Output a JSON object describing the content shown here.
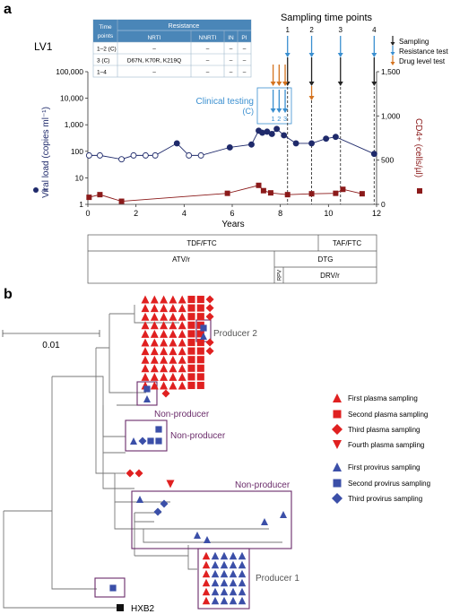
{
  "panel_a": {
    "label": "a",
    "patient": "LV1",
    "table": {
      "headers": [
        "Time points",
        "Resistance"
      ],
      "subheaders": [
        "NRTI",
        "NNRTI",
        "IN",
        "PI"
      ],
      "rows": [
        {
          "tp": "1–2 (C)",
          "nrti": "–",
          "nnrti": "–",
          "in": "–",
          "pi": "–"
        },
        {
          "tp": "3 (C)",
          "nrti": "D67N, K70R, K219Q",
          "nnrti": "–",
          "in": "–",
          "pi": "–"
        },
        {
          "tp": "1–4",
          "nrti": "–",
          "nnrti": "–",
          "in": "–",
          "pi": "–"
        }
      ]
    },
    "sampling_title": "Sampling time points",
    "sampling_numbers": [
      "1",
      "2",
      "3",
      "4"
    ],
    "arrow_legend": [
      "Sampling",
      "Resistance test",
      "Drug level test"
    ],
    "clinical_testing": {
      "title": "Clinical testing",
      "sub": "(C)",
      "numbers": [
        "1",
        "2",
        "3"
      ]
    },
    "treatments": {
      "row1": [
        "TDF/FTC",
        "TAF/FTC"
      ],
      "row2": [
        "ATV/r",
        "DTG"
      ],
      "row3": [
        "RPV",
        "DRV/r"
      ]
    }
  },
  "chart_data": {
    "type": "line",
    "xlabel": "Years",
    "ylabel_left": "Viral load (copies ml⁻¹)",
    "ylabel_right": "CD4+ (cells/µl)",
    "xlim": [
      0,
      12
    ],
    "x_ticks": [
      "0",
      "2",
      "4",
      "6",
      "8",
      "10",
      "12"
    ],
    "ylim_left": [
      1,
      100000
    ],
    "yscale_left": "log",
    "y_ticks_left": [
      "1",
      "10",
      "100",
      "1,000",
      "10,000",
      "100,000"
    ],
    "ylim_right": [
      0,
      1500
    ],
    "y_ticks_right": [
      "0",
      "500",
      "1,000",
      "1,500"
    ],
    "sampling_years": [
      8.3,
      9.3,
      10.5,
      11.9
    ],
    "clinical_years": [
      7.7,
      7.95,
      8.2
    ],
    "colors": {
      "viral": "#1f2a6b",
      "cd4": "#8b1a1a",
      "sampling": "#222222",
      "resistance": "#3a8fd0",
      "drug": "#d4731f"
    },
    "series": [
      {
        "name": "Viral load (copies ml⁻¹)",
        "points": [
          {
            "x": 0.05,
            "y": 70,
            "filled": false
          },
          {
            "x": 0.5,
            "y": 70,
            "filled": false
          },
          {
            "x": 1.4,
            "y": 50,
            "filled": false
          },
          {
            "x": 1.9,
            "y": 70,
            "filled": false
          },
          {
            "x": 2.4,
            "y": 70,
            "filled": false
          },
          {
            "x": 2.8,
            "y": 70,
            "filled": false
          },
          {
            "x": 3.7,
            "y": 200,
            "filled": true
          },
          {
            "x": 4.2,
            "y": 70,
            "filled": false
          },
          {
            "x": 4.7,
            "y": 70,
            "filled": false
          },
          {
            "x": 5.9,
            "y": 140,
            "filled": true
          },
          {
            "x": 6.8,
            "y": 180,
            "filled": true
          },
          {
            "x": 7.1,
            "y": 600,
            "filled": true
          },
          {
            "x": 7.25,
            "y": 500,
            "filled": true
          },
          {
            "x": 7.45,
            "y": 550,
            "filled": true
          },
          {
            "x": 7.65,
            "y": 450,
            "filled": true
          },
          {
            "x": 7.85,
            "y": 700,
            "filled": true
          },
          {
            "x": 8.15,
            "y": 400,
            "filled": true
          },
          {
            "x": 8.65,
            "y": 200,
            "filled": true
          },
          {
            "x": 9.3,
            "y": 200,
            "filled": true
          },
          {
            "x": 9.9,
            "y": 300,
            "filled": true
          },
          {
            "x": 10.3,
            "y": 350,
            "filled": true
          },
          {
            "x": 11.9,
            "y": 80,
            "filled": true
          }
        ]
      },
      {
        "name": "CD4+ (cells/µl)",
        "points": [
          {
            "x": 0.05,
            "y": 80
          },
          {
            "x": 0.5,
            "y": 110
          },
          {
            "x": 1.4,
            "y": 35
          },
          {
            "x": 5.8,
            "y": 125
          },
          {
            "x": 7.1,
            "y": 215
          },
          {
            "x": 7.3,
            "y": 155
          },
          {
            "x": 7.6,
            "y": 130
          },
          {
            "x": 8.3,
            "y": 110
          },
          {
            "x": 9.3,
            "y": 120
          },
          {
            "x": 10.3,
            "y": 125
          },
          {
            "x": 10.6,
            "y": 170
          },
          {
            "x": 11.4,
            "y": 120
          }
        ]
      }
    ]
  },
  "panel_b": {
    "label": "b",
    "scale_label": "0.01",
    "labels": {
      "producer2": "Producer 2",
      "producer1": "Producer 1",
      "nonproducer": "Non-producer",
      "hxb2": "HXB2"
    },
    "legend": [
      {
        "shape": "triangle-up",
        "color": "#e02020",
        "label": "First plasma sampling"
      },
      {
        "shape": "square",
        "color": "#e02020",
        "label": "Second plasma sampling"
      },
      {
        "shape": "diamond",
        "color": "#e02020",
        "label": "Third plasma sampling"
      },
      {
        "shape": "triangle-down",
        "color": "#e02020",
        "label": "Fourth plasma sampling"
      },
      {
        "shape": "triangle-up",
        "color": "#3b4fa8",
        "label": "First provirus sampling"
      },
      {
        "shape": "square",
        "color": "#3b4fa8",
        "label": "Second provirus sampling"
      },
      {
        "shape": "diamond",
        "color": "#3b4fa8",
        "label": "Third provirus sampling"
      }
    ],
    "colors": {
      "plasma": "#e02020",
      "provirus": "#3b4fa8",
      "box": "#6a2b6a",
      "hxb2": "#111111"
    }
  }
}
